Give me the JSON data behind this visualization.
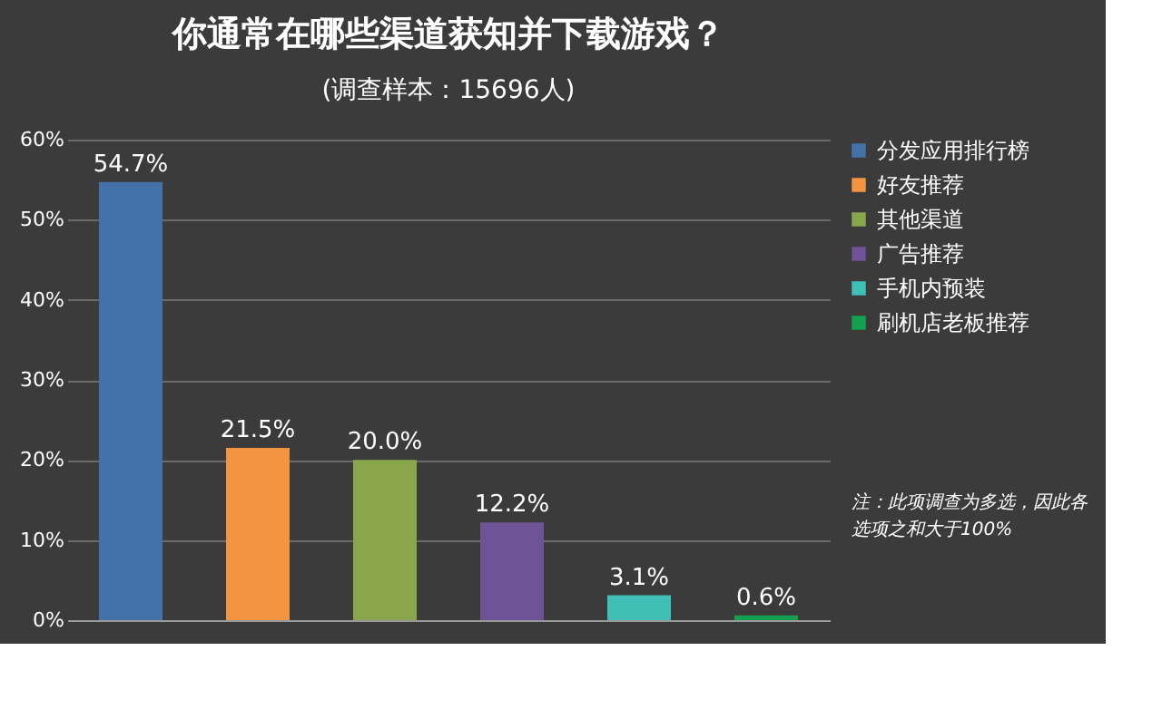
{
  "chart_data": {
    "type": "bar",
    "title": "你通常在哪些渠道获知并下载游戏？",
    "subtitle": "(调查样本：15696人)",
    "categories": [
      null,
      null,
      null,
      null,
      null,
      null
    ],
    "series": [
      {
        "name": "分发应用排行榜",
        "color": "#4472a8",
        "values": [
          54.7,
          null,
          null,
          null,
          null,
          null
        ],
        "value_labels": [
          "54.7%",
          null,
          null,
          null,
          null,
          null
        ]
      },
      {
        "name": "好友推荐",
        "color": "#f39443",
        "values": [
          null,
          21.5,
          null,
          null,
          null,
          null
        ],
        "value_labels": [
          null,
          "21.5%",
          null,
          null,
          null,
          null
        ]
      },
      {
        "name": "其他渠道",
        "color": "#8aa64d",
        "values": [
          null,
          null,
          20.0,
          null,
          null,
          null
        ],
        "value_labels": [
          null,
          null,
          "20.0%",
          null,
          null,
          null
        ]
      },
      {
        "name": "广告推荐",
        "color": "#6e5396",
        "values": [
          null,
          null,
          null,
          12.2,
          null,
          null
        ],
        "value_labels": [
          null,
          null,
          null,
          "12.2%",
          null,
          null
        ]
      },
      {
        "name": "手机内预装",
        "color": "#3fbfb6",
        "values": [
          null,
          null,
          null,
          null,
          3.1,
          null
        ],
        "value_labels": [
          null,
          null,
          null,
          null,
          "3.1%",
          null
        ]
      },
      {
        "name": "刷机店老板推荐",
        "color": "#14a050",
        "values": [
          null,
          null,
          null,
          null,
          null,
          0.6
        ],
        "value_labels": [
          null,
          null,
          null,
          null,
          null,
          "0.6%"
        ]
      }
    ],
    "ylim": [
      0,
      60
    ],
    "yticks": [
      {
        "value": 0,
        "label": "0%"
      },
      {
        "value": 10,
        "label": "10%"
      },
      {
        "value": 20,
        "label": "20%"
      },
      {
        "value": 30,
        "label": "30%"
      },
      {
        "value": 40,
        "label": "40%"
      },
      {
        "value": 50,
        "label": "50%"
      },
      {
        "value": 60,
        "label": "60%"
      }
    ],
    "grid": "y",
    "legend": "right",
    "tick_labels": "y",
    "annotations": [
      "注：此项调查为多选，因此各选项之和大于100%"
    ]
  }
}
